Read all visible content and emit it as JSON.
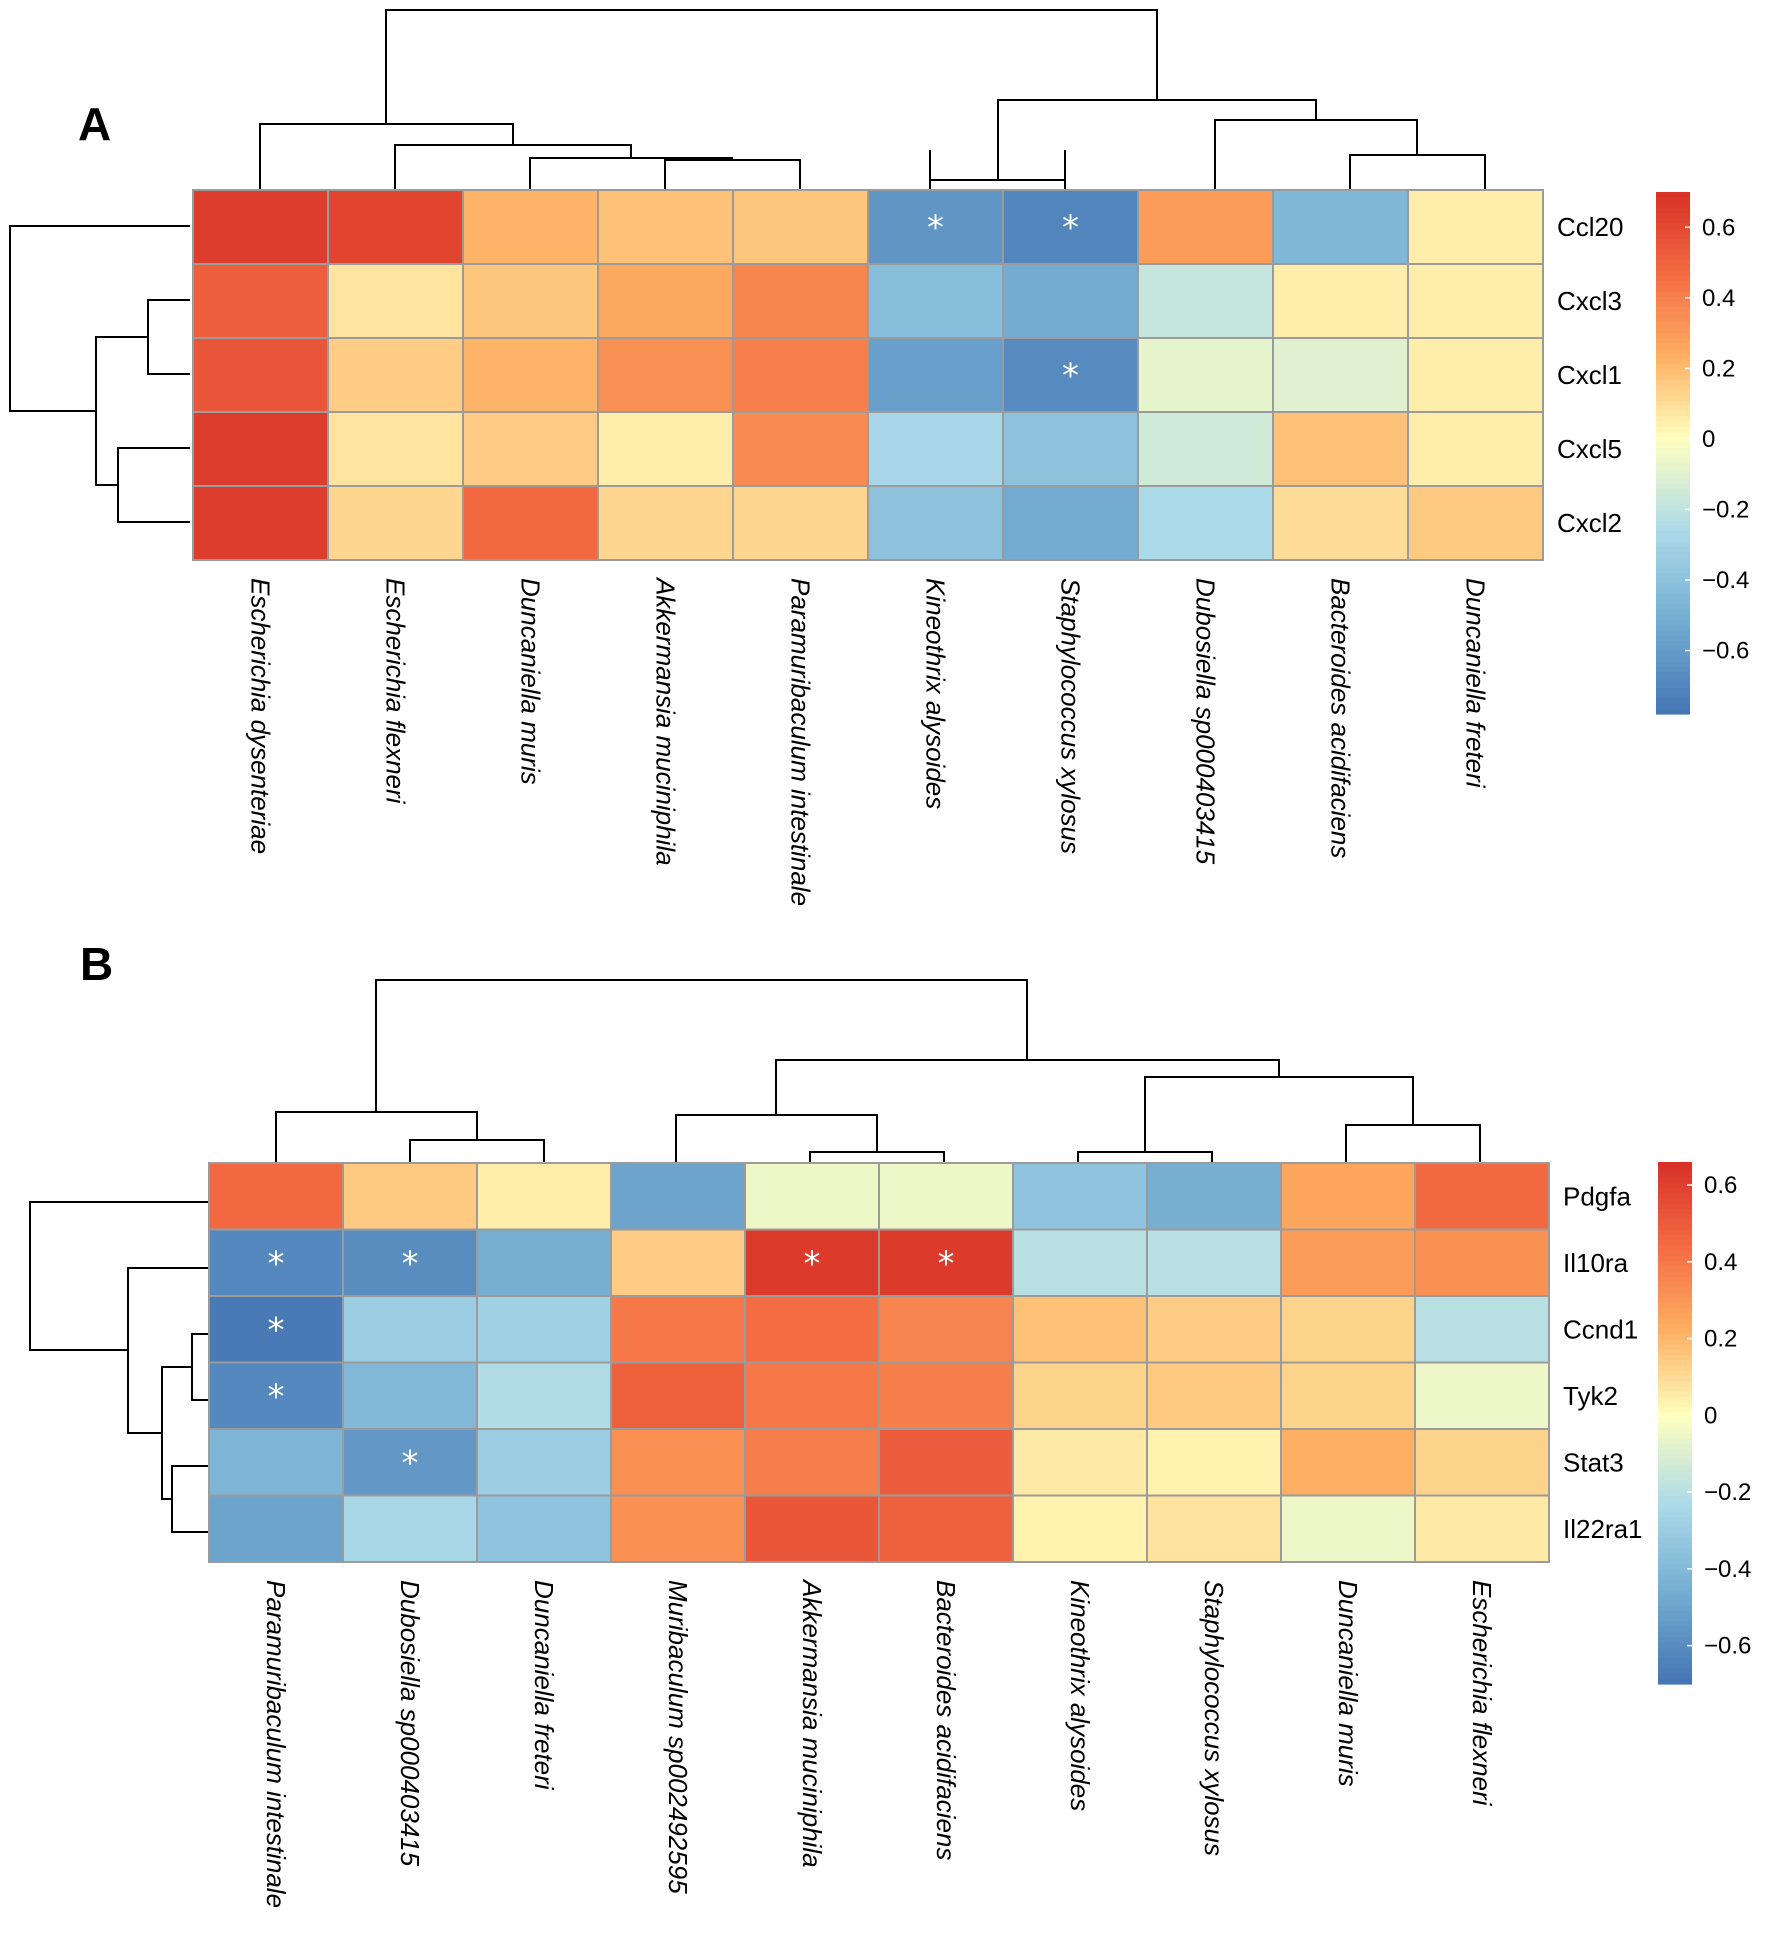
{
  "chart_data": [
    {
      "panel": "A",
      "type": "heatmap",
      "rows": [
        "Ccl20",
        "Cxcl3",
        "Cxcl1",
        "Cxcl5",
        "Cxcl2"
      ],
      "columns": [
        "Escherichia dysenteriae",
        "Escherichia flexneri",
        "Duncaniella muris",
        "Akkermansia muciniphila",
        "Paramuribaculum intestinale",
        "Kineothrix alysoides",
        "Staphylococcus xylosus",
        "Dubosiella sp000403415",
        "Bacteroides acidifaciens",
        "Duncaniella freteri"
      ],
      "values": [
        [
          0.65,
          0.62,
          0.22,
          0.18,
          0.17,
          -0.63,
          -0.7,
          0.3,
          -0.45,
          0.05
        ],
        [
          0.52,
          0.08,
          0.17,
          0.26,
          0.38,
          -0.42,
          -0.52,
          -0.18,
          0.05,
          0.05
        ],
        [
          0.55,
          0.15,
          0.22,
          0.34,
          0.4,
          -0.58,
          -0.68,
          -0.08,
          -0.1,
          0.05
        ],
        [
          0.65,
          0.08,
          0.15,
          0.05,
          0.36,
          -0.28,
          -0.4,
          -0.15,
          0.18,
          0.05
        ],
        [
          0.65,
          0.12,
          0.48,
          0.12,
          0.12,
          -0.4,
          -0.52,
          -0.26,
          0.1,
          0.16
        ]
      ],
      "significant": [
        [
          0,
          5
        ],
        [
          0,
          6
        ],
        [
          2,
          6
        ]
      ],
      "star_symbol": "*",
      "legend_ticks": [
        "0.6",
        "0.4",
        "0.2",
        "0",
        "−0.2",
        "−0.4",
        "−0.6"
      ],
      "legend_values": [
        0.6,
        0.4,
        0.2,
        0,
        -0.2,
        -0.4,
        -0.6
      ],
      "scale_range": [
        -0.78,
        0.7
      ]
    },
    {
      "panel": "B",
      "type": "heatmap",
      "rows": [
        "Pdgfa",
        "Il10ra",
        "Ccnd1",
        "Tyk2",
        "Stat3",
        "Il22ra1"
      ],
      "columns": [
        "Paramuribaculum intestinale",
        "Dubosiella sp000403415",
        "Duncaniella freteri",
        "Muribaculum sp002492595",
        "Akkermansia muciniphila",
        "Bacteroides acidifaciens",
        "Kineothrix alysoides",
        "Staphylococcus xylosus",
        "Duncaniella muris",
        "Escherichia flexneri"
      ],
      "values": [
        [
          0.45,
          0.15,
          0.05,
          -0.5,
          -0.05,
          -0.05,
          -0.35,
          -0.45,
          0.25,
          0.45
        ],
        [
          -0.62,
          -0.6,
          -0.45,
          0.14,
          0.62,
          0.62,
          -0.2,
          -0.2,
          0.28,
          0.32
        ],
        [
          -0.68,
          -0.3,
          -0.28,
          0.4,
          0.44,
          0.36,
          0.17,
          0.14,
          0.12,
          -0.2
        ],
        [
          -0.62,
          -0.4,
          -0.22,
          0.48,
          0.4,
          0.38,
          0.12,
          0.15,
          0.12,
          -0.05
        ],
        [
          -0.42,
          -0.55,
          -0.3,
          0.32,
          0.38,
          0.5,
          0.06,
          0.04,
          0.22,
          0.12
        ],
        [
          -0.5,
          -0.25,
          -0.35,
          0.32,
          0.52,
          0.48,
          0.04,
          0.08,
          -0.05,
          0.06
        ]
      ],
      "significant": [
        [
          1,
          0
        ],
        [
          1,
          1
        ],
        [
          1,
          4
        ],
        [
          1,
          5
        ],
        [
          2,
          0
        ],
        [
          3,
          0
        ],
        [
          4,
          1
        ]
      ],
      "star_symbol": "*",
      "legend_ticks": [
        "0.6",
        "0.4",
        "0.2",
        "0",
        "−0.2",
        "−0.4",
        "−0.6"
      ],
      "legend_values": [
        0.6,
        0.4,
        0.2,
        0,
        -0.2,
        -0.4,
        -0.6
      ],
      "scale_range": [
        -0.7,
        0.66
      ]
    }
  ]
}
